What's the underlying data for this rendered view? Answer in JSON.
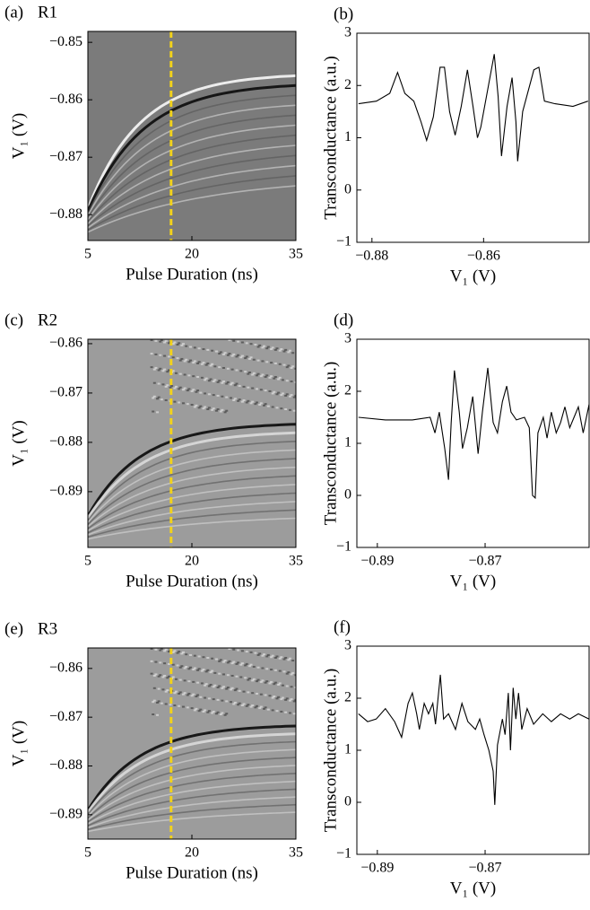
{
  "chart_data": [
    {
      "type": "heatmap",
      "panel": "(a)",
      "title": "R1",
      "xlabel": "Pulse Duration (ns)",
      "ylabel": "V₁ (V)",
      "xlim": [
        5,
        35
      ],
      "xticks": [
        5,
        20,
        35
      ],
      "ylim": [
        -0.8845,
        -0.8481
      ],
      "yticks": [
        {
          "value": -0.88,
          "label": "−0.88"
        },
        {
          "value": -0.87,
          "label": "−0.87"
        },
        {
          "value": -0.86,
          "label": "−0.86"
        },
        {
          "value": -0.85,
          "label": "−0.85"
        }
      ],
      "vline": 17,
      "vline_color": "#f2d21b"
    },
    {
      "type": "line",
      "panel": "(b)",
      "xlabel": "V₁ (V)",
      "ylabel": "Transconductance (a.u.)",
      "color": "#000000",
      "xlim": [
        -0.8827,
        -0.8411
      ],
      "xticks": [
        {
          "value": -0.88,
          "label": "−0.88"
        },
        {
          "value": -0.86,
          "label": "−0.86"
        }
      ],
      "ylim": [
        -1,
        3
      ],
      "yticks": [
        {
          "value": -1,
          "label": "−1"
        },
        0,
        1,
        2,
        3
      ],
      "x": [
        -0.8824,
        -0.8792,
        -0.8768,
        -0.8754,
        -0.8741,
        -0.8725,
        -0.8712,
        -0.8702,
        -0.869,
        -0.8678,
        -0.867,
        -0.8661,
        -0.8651,
        -0.864,
        -0.8629,
        -0.8619,
        -0.8611,
        -0.8605,
        -0.8581,
        -0.8574,
        -0.8568,
        -0.8558,
        -0.8549,
        -0.8542,
        -0.8539,
        -0.853,
        -0.851,
        -0.8501,
        -0.8491,
        -0.8472,
        -0.844,
        -0.8413
      ],
      "values": [
        1.65,
        1.7,
        1.85,
        2.25,
        1.85,
        1.7,
        1.3,
        0.95,
        1.4,
        2.35,
        2.35,
        1.5,
        1.05,
        1.6,
        2.3,
        1.6,
        1.0,
        1.2,
        2.6,
        1.8,
        0.65,
        1.6,
        2.15,
        1.3,
        0.55,
        1.5,
        2.3,
        2.35,
        1.7,
        1.65,
        1.6,
        1.7
      ]
    },
    {
      "type": "heatmap",
      "panel": "(c)",
      "title": "R2",
      "xlabel": "Pulse Duration (ns)",
      "ylabel": "V₁ (V)",
      "xlim": [
        5,
        35
      ],
      "xticks": [
        5,
        20,
        35
      ],
      "ylim": [
        -0.9013,
        -0.8591
      ],
      "yticks": [
        {
          "value": -0.89,
          "label": "−0.89"
        },
        {
          "value": -0.88,
          "label": "−0.88"
        },
        {
          "value": -0.87,
          "label": "−0.87"
        },
        {
          "value": -0.86,
          "label": "−0.86"
        }
      ],
      "vline": 17,
      "vline_color": "#f2d21b"
    },
    {
      "type": "line",
      "panel": "(d)",
      "xlabel": "V₁ (V)",
      "ylabel": "Transconductance (a.u.)",
      "color": "#000000",
      "xlim": [
        -0.8938,
        -0.8507
      ],
      "xticks": [
        {
          "value": -0.89,
          "label": "−0.89"
        },
        {
          "value": -0.87,
          "label": "−0.87"
        }
      ],
      "ylim": [
        -1,
        3
      ],
      "yticks": [
        {
          "value": -1,
          "label": "−1"
        },
        0,
        1,
        2,
        3
      ],
      "x": [
        -0.8935,
        -0.8885,
        -0.8835,
        -0.8802,
        -0.8793,
        -0.8785,
        -0.8775,
        -0.8768,
        -0.8763,
        -0.8757,
        -0.8748,
        -0.8742,
        -0.8733,
        -0.8723,
        -0.8713,
        -0.8705,
        -0.8695,
        -0.8685,
        -0.8677,
        -0.8668,
        -0.866,
        -0.8652,
        -0.8642,
        -0.8627,
        -0.8618,
        -0.8612,
        -0.8607,
        -0.8602,
        -0.8592,
        -0.8585,
        -0.8577,
        -0.8568,
        -0.856,
        -0.8552,
        -0.8543,
        -0.8535,
        -0.8527,
        -0.8518,
        -0.8507
      ],
      "values": [
        1.5,
        1.45,
        1.45,
        1.5,
        1.2,
        1.6,
        0.9,
        0.3,
        1.4,
        2.4,
        1.6,
        0.9,
        1.3,
        1.9,
        0.8,
        1.6,
        2.45,
        1.4,
        1.2,
        1.8,
        2.1,
        1.6,
        1.45,
        1.5,
        1.3,
        0.0,
        -0.05,
        1.2,
        1.5,
        1.1,
        1.6,
        1.2,
        1.4,
        1.7,
        1.3,
        1.5,
        1.7,
        1.2,
        1.75
      ]
    },
    {
      "type": "heatmap",
      "panel": "(e)",
      "title": "R3",
      "xlabel": "Pulse Duration (ns)",
      "ylabel": "V₁ (V)",
      "xlim": [
        5,
        35
      ],
      "xticks": [
        5,
        20,
        35
      ],
      "ylim": [
        -0.895,
        -0.8558
      ],
      "yticks": [
        {
          "value": -0.89,
          "label": "−0.89"
        },
        {
          "value": -0.88,
          "label": "−0.88"
        },
        {
          "value": -0.87,
          "label": "−0.87"
        },
        {
          "value": -0.86,
          "label": "−0.86"
        }
      ],
      "vline": 17,
      "vline_color": "#f2d21b"
    },
    {
      "type": "line",
      "panel": "(f)",
      "xlabel": "V₁ (V)",
      "ylabel": "Transconductance (a.u.)",
      "color": "#000000",
      "xlim": [
        -0.8938,
        -0.8507
      ],
      "xticks": [
        {
          "value": -0.89,
          "label": "−0.89"
        },
        {
          "value": -0.87,
          "label": "−0.87"
        }
      ],
      "ylim": [
        -1,
        3
      ],
      "yticks": [
        {
          "value": -1,
          "label": "−1"
        },
        0,
        1,
        2,
        3
      ],
      "x": [
        -0.8935,
        -0.8918,
        -0.8902,
        -0.8885,
        -0.8868,
        -0.8855,
        -0.8843,
        -0.8835,
        -0.8827,
        -0.8822,
        -0.8813,
        -0.8805,
        -0.8797,
        -0.8792,
        -0.8783,
        -0.8777,
        -0.8768,
        -0.8755,
        -0.8743,
        -0.8732,
        -0.8718,
        -0.871,
        -0.8702,
        -0.8693,
        -0.8685,
        -0.8682,
        -0.8677,
        -0.8668,
        -0.8663,
        -0.8657,
        -0.8653,
        -0.8648,
        -0.8643,
        -0.8638,
        -0.8632,
        -0.8622,
        -0.861,
        -0.8593,
        -0.8577,
        -0.856,
        -0.8543,
        -0.8527,
        -0.8507
      ],
      "values": [
        1.7,
        1.55,
        1.6,
        1.8,
        1.55,
        1.25,
        1.9,
        2.1,
        1.7,
        1.4,
        1.9,
        1.7,
        1.9,
        1.5,
        2.45,
        1.6,
        1.7,
        1.4,
        1.9,
        1.55,
        1.4,
        1.6,
        1.3,
        1.0,
        0.6,
        -0.05,
        1.1,
        1.6,
        1.3,
        2.1,
        1.0,
        2.2,
        1.6,
        2.1,
        1.4,
        1.8,
        1.5,
        1.7,
        1.55,
        1.7,
        1.6,
        1.7,
        1.6
      ]
    }
  ]
}
